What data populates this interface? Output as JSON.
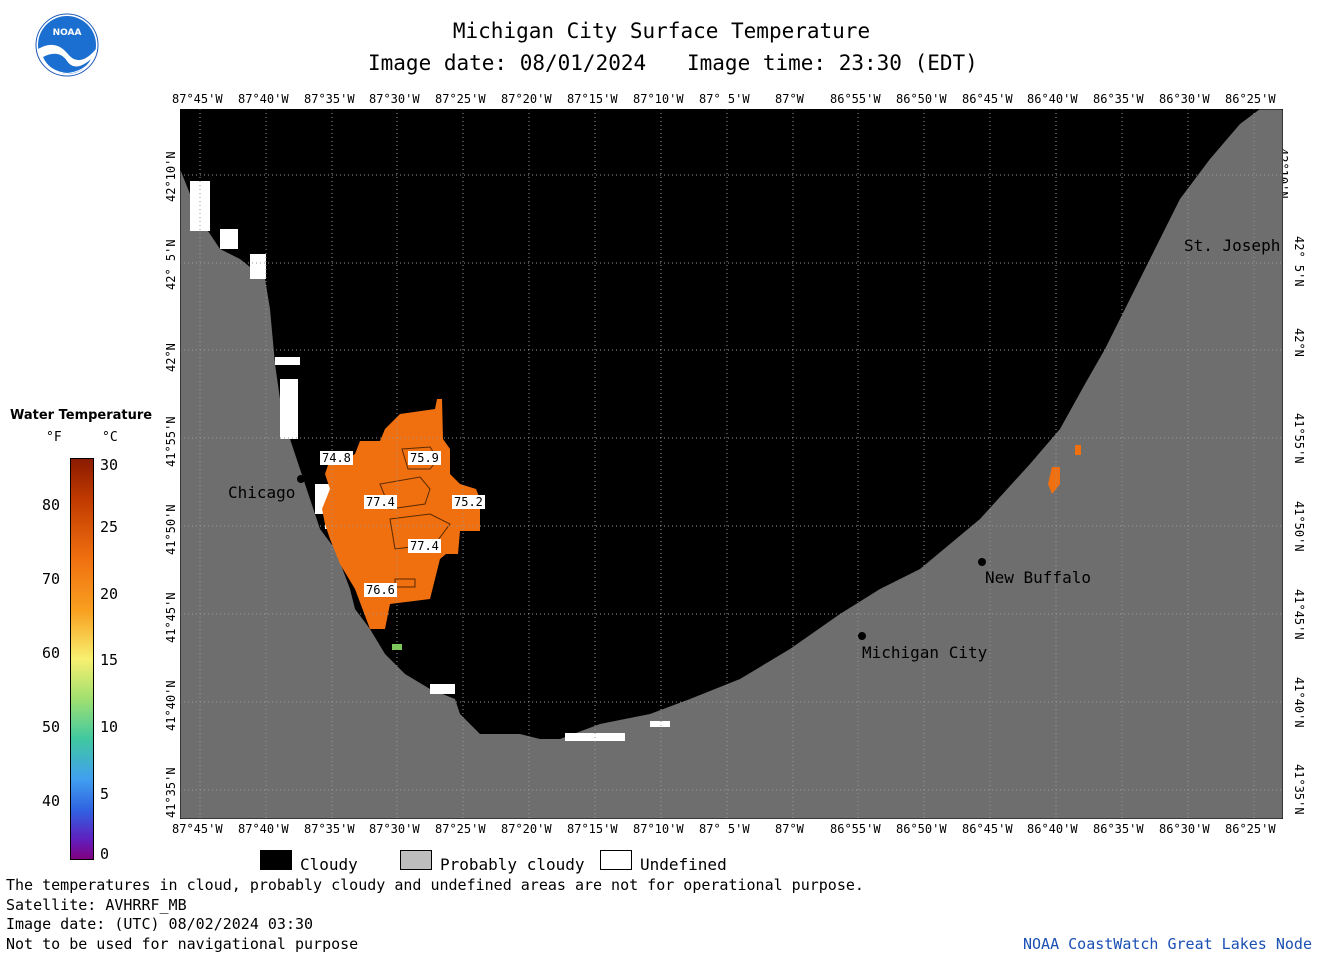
{
  "header": {
    "title": "Michigan City Surface Temperature",
    "date_label": "Image date: 08/01/2024",
    "time_label": "Image time: 23:30 (EDT)"
  },
  "logo": {
    "text": "NOAA"
  },
  "lon_ticks": [
    "87°45'W",
    "87°40'W",
    "87°35'W",
    "87°30'W",
    "87°25'W",
    "87°20'W",
    "87°15'W",
    "87°10'W",
    "87° 5'W",
    "87°W",
    "86°55'W",
    "86°50'W",
    "86°45'W",
    "86°40'W",
    "86°35'W",
    "86°30'W",
    "86°25'W"
  ],
  "lat_ticks": [
    "42°10'N",
    "42° 5'N",
    "42°N",
    "41°55'N",
    "41°50'N",
    "41°45'N",
    "41°40'N",
    "41°35'N"
  ],
  "places": {
    "chicago": "Chicago",
    "st_joseph": "St. Joseph",
    "new_buffalo": "New Buffalo",
    "michigan_city": "Michigan City"
  },
  "isotherm_labels": [
    "74.8",
    "75.9",
    "77.4",
    "75.2",
    "77.4",
    "76.6"
  ],
  "colorbar": {
    "title": "Water Temperature",
    "unit_f": "°F",
    "unit_c": "°C",
    "f_ticks": [
      "80",
      "70",
      "60",
      "50",
      "40"
    ],
    "c_ticks": [
      "30",
      "25",
      "20",
      "15",
      "10",
      "5",
      "0"
    ]
  },
  "legend": {
    "cloudy": "Cloudy",
    "probably_cloudy": "Probably cloudy",
    "undefined": "Undefined"
  },
  "footer": {
    "line1": "The temperatures in cloud, probably cloudy and undefined areas are not for operational purpose.",
    "line2": "Satellite: AVHRRF_MB",
    "line3": "Image date: (UTC) 08/02/2024  03:30",
    "line4": "Not to be used for navigational purpose",
    "credit": "NOAA CoastWatch Great Lakes Node"
  },
  "colors": {
    "land": "#6e6e6e",
    "cloud": "#000000",
    "water_warm": "#f07010",
    "credit": "#1a4fb4"
  }
}
